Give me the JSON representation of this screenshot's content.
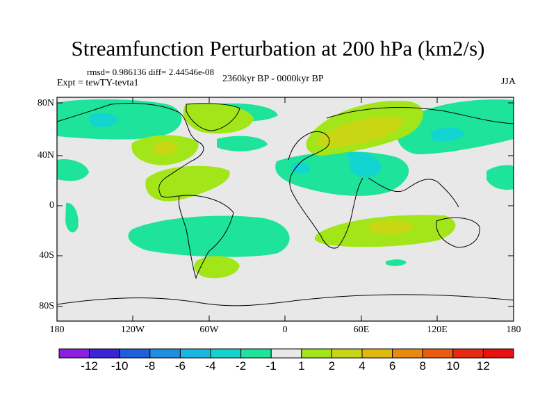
{
  "title": "Streamfunction Perturbation at 200 hPa (km2/s)",
  "stats": "rmsd= 0.986136 diff= 2.44546e-08",
  "experiment": "Expt = tewTY-tevta1",
  "period": "2360kyr BP - 0000kyr BP",
  "season": "JJA",
  "lat_labels": [
    "80N",
    "40N",
    "0",
    "40S",
    "80S"
  ],
  "lon_labels": [
    "180",
    "120W",
    "60W",
    "0",
    "60E",
    "120E",
    "180"
  ],
  "colorbar": {
    "labels": [
      "-12",
      "-10",
      "-8",
      "-6",
      "-4",
      "-2",
      "-1",
      "1",
      "2",
      "4",
      "6",
      "8",
      "10",
      "12"
    ],
    "colors": [
      "#8a1fe0",
      "#3b23d6",
      "#1f5fdc",
      "#1f8ee0",
      "#18b8e0",
      "#12d4d0",
      "#1ee39a",
      "#e8e8e8",
      "#a2e61a",
      "#c8d614",
      "#e0b80e",
      "#e88a10",
      "#e85c12",
      "#e82a12",
      "#e81010"
    ]
  },
  "fill_colors": {
    "background": "#e8e8e8",
    "neg_weak": "#1ee39a",
    "neg_mid": "#12d4d0",
    "pos_weak": "#a2e61a",
    "pos_mid": "#c8d614"
  }
}
